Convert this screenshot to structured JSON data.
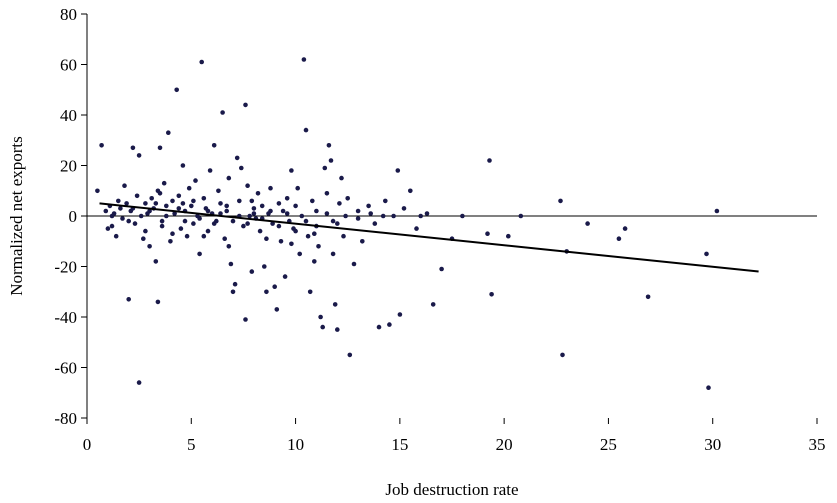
{
  "chart_data": {
    "type": "scatter",
    "title": "",
    "xlabel": "Job destruction rate",
    "ylabel": "Normalized net exports",
    "xlim": [
      0,
      35
    ],
    "ylim": [
      -80,
      80
    ],
    "x_ticks": [
      "0",
      "5",
      "10",
      "15",
      "20",
      "25",
      "30",
      "35"
    ],
    "y_ticks": [
      "80",
      "60",
      "40",
      "20",
      "0",
      "-20",
      "-40",
      "-60",
      "-80"
    ],
    "grid": false,
    "legend": "none",
    "point_color": "#1a1a4a",
    "trend_line": {
      "x": [
        0.6,
        32.2
      ],
      "y": [
        5.0,
        -22.0
      ]
    },
    "points": [
      [
        0.5,
        10
      ],
      [
        0.7,
        28
      ],
      [
        0.9,
        2
      ],
      [
        1.0,
        -5
      ],
      [
        1.1,
        4
      ],
      [
        1.2,
        -4
      ],
      [
        1.3,
        1
      ],
      [
        1.4,
        -8
      ],
      [
        1.5,
        6
      ],
      [
        1.6,
        3
      ],
      [
        1.7,
        -1
      ],
      [
        1.8,
        12
      ],
      [
        1.9,
        5
      ],
      [
        2.0,
        -33
      ],
      [
        2.1,
        2
      ],
      [
        2.2,
        27
      ],
      [
        2.3,
        -3
      ],
      [
        2.4,
        8
      ],
      [
        2.5,
        24
      ],
      [
        2.5,
        -66
      ],
      [
        2.6,
        0
      ],
      [
        2.7,
        -9
      ],
      [
        2.8,
        5
      ],
      [
        2.9,
        1
      ],
      [
        3.0,
        -12
      ],
      [
        3.1,
        7
      ],
      [
        3.2,
        3
      ],
      [
        3.3,
        -18
      ],
      [
        3.4,
        10
      ],
      [
        3.4,
        -34
      ],
      [
        3.5,
        27
      ],
      [
        3.6,
        -2
      ],
      [
        3.7,
        13
      ],
      [
        3.8,
        4
      ],
      [
        3.9,
        33
      ],
      [
        4.0,
        -10
      ],
      [
        4.1,
        6
      ],
      [
        4.2,
        1
      ],
      [
        4.3,
        50
      ],
      [
        4.4,
        8
      ],
      [
        4.5,
        -5
      ],
      [
        4.6,
        20
      ],
      [
        4.7,
        2
      ],
      [
        4.8,
        -8
      ],
      [
        4.9,
        11
      ],
      [
        5.0,
        4
      ],
      [
        5.1,
        -3
      ],
      [
        5.2,
        14
      ],
      [
        5.3,
        0
      ],
      [
        5.4,
        -15
      ],
      [
        5.5,
        61
      ],
      [
        5.6,
        7
      ],
      [
        5.7,
        3
      ],
      [
        5.8,
        -6
      ],
      [
        5.9,
        18
      ],
      [
        6.0,
        1
      ],
      [
        6.1,
        28
      ],
      [
        6.2,
        -2
      ],
      [
        6.3,
        10
      ],
      [
        6.4,
        5
      ],
      [
        6.5,
        41
      ],
      [
        6.6,
        -9
      ],
      [
        6.7,
        2
      ],
      [
        6.8,
        15
      ],
      [
        6.9,
        -19
      ],
      [
        7.0,
        -30
      ],
      [
        7.1,
        -27
      ],
      [
        7.2,
        23
      ],
      [
        7.3,
        6
      ],
      [
        7.4,
        19
      ],
      [
        7.5,
        -4
      ],
      [
        7.6,
        44
      ],
      [
        7.6,
        -41
      ],
      [
        7.7,
        12
      ],
      [
        7.8,
        0
      ],
      [
        7.9,
        -22
      ],
      [
        8.0,
        3
      ],
      [
        8.1,
        -1
      ],
      [
        8.2,
        9
      ],
      [
        8.3,
        -6
      ],
      [
        8.4,
        4
      ],
      [
        8.5,
        -20
      ],
      [
        8.6,
        -30
      ],
      [
        8.7,
        1
      ],
      [
        8.8,
        11
      ],
      [
        8.9,
        -3
      ],
      [
        9.0,
        -28
      ],
      [
        9.1,
        -37
      ],
      [
        9.2,
        5
      ],
      [
        9.3,
        -10
      ],
      [
        9.4,
        2
      ],
      [
        9.5,
        -24
      ],
      [
        9.6,
        7
      ],
      [
        9.7,
        -2
      ],
      [
        9.8,
        18
      ],
      [
        9.9,
        -5
      ],
      [
        10.0,
        4
      ],
      [
        10.1,
        11
      ],
      [
        10.2,
        -15
      ],
      [
        10.3,
        0
      ],
      [
        10.4,
        62
      ],
      [
        10.5,
        34
      ],
      [
        10.6,
        -8
      ],
      [
        10.7,
        -30
      ],
      [
        10.8,
        6
      ],
      [
        10.9,
        -18
      ],
      [
        11.0,
        2
      ],
      [
        11.1,
        -12
      ],
      [
        11.2,
        -40
      ],
      [
        11.3,
        -44
      ],
      [
        11.4,
        19
      ],
      [
        11.5,
        9
      ],
      [
        11.6,
        28
      ],
      [
        11.7,
        22
      ],
      [
        11.8,
        -2
      ],
      [
        11.9,
        -35
      ],
      [
        12.0,
        -45
      ],
      [
        12.1,
        5
      ],
      [
        12.2,
        15
      ],
      [
        12.3,
        -8
      ],
      [
        12.5,
        7
      ],
      [
        12.6,
        -55
      ],
      [
        12.8,
        -19
      ],
      [
        13.0,
        2
      ],
      [
        13.2,
        -10
      ],
      [
        13.5,
        4
      ],
      [
        13.8,
        -3
      ],
      [
        14.0,
        -44
      ],
      [
        14.3,
        6
      ],
      [
        14.5,
        -43
      ],
      [
        14.7,
        0
      ],
      [
        14.9,
        18
      ],
      [
        15.0,
        -39
      ],
      [
        15.2,
        3
      ],
      [
        15.5,
        10
      ],
      [
        15.8,
        -5
      ],
      [
        16.0,
        0
      ],
      [
        16.3,
        1
      ],
      [
        16.6,
        -35
      ],
      [
        17.0,
        -21
      ],
      [
        17.5,
        -9
      ],
      [
        18.0,
        0
      ],
      [
        19.2,
        -7
      ],
      [
        19.3,
        22
      ],
      [
        19.4,
        -31
      ],
      [
        20.2,
        -8
      ],
      [
        20.8,
        0
      ],
      [
        22.7,
        6
      ],
      [
        22.8,
        -55
      ],
      [
        23.0,
        -14
      ],
      [
        24.0,
        -3
      ],
      [
        25.5,
        -9
      ],
      [
        25.8,
        -5
      ],
      [
        26.9,
        -32
      ],
      [
        29.7,
        -15
      ],
      [
        29.8,
        -68
      ],
      [
        30.2,
        2
      ],
      [
        1.2,
        0
      ],
      [
        2.0,
        -2
      ],
      [
        2.8,
        -6
      ],
      [
        3.0,
        2
      ],
      [
        3.3,
        5
      ],
      [
        3.6,
        -4
      ],
      [
        3.8,
        0
      ],
      [
        4.1,
        -7
      ],
      [
        4.4,
        3
      ],
      [
        4.7,
        -2
      ],
      [
        5.1,
        6
      ],
      [
        5.4,
        -1
      ],
      [
        5.8,
        2
      ],
      [
        6.1,
        -3
      ],
      [
        6.4,
        1
      ],
      [
        6.7,
        4
      ],
      [
        7.0,
        -2
      ],
      [
        7.3,
        0
      ],
      [
        7.7,
        -3
      ],
      [
        8.0,
        1
      ],
      [
        8.4,
        -1
      ],
      [
        8.8,
        2
      ],
      [
        9.2,
        -4
      ],
      [
        9.6,
        1
      ],
      [
        10.0,
        -6
      ],
      [
        10.5,
        -2
      ],
      [
        11.0,
        -4
      ],
      [
        11.5,
        1
      ],
      [
        12.0,
        -3
      ],
      [
        12.4,
        0
      ],
      [
        13.0,
        -1
      ],
      [
        13.6,
        1
      ],
      [
        14.2,
        0
      ],
      [
        2.2,
        3
      ],
      [
        3.5,
        9
      ],
      [
        4.6,
        5
      ],
      [
        5.6,
        -8
      ],
      [
        6.8,
        -12
      ],
      [
        7.9,
        6
      ],
      [
        8.6,
        -9
      ],
      [
        9.8,
        -11
      ],
      [
        10.9,
        -7
      ],
      [
        11.8,
        -15
      ]
    ]
  }
}
